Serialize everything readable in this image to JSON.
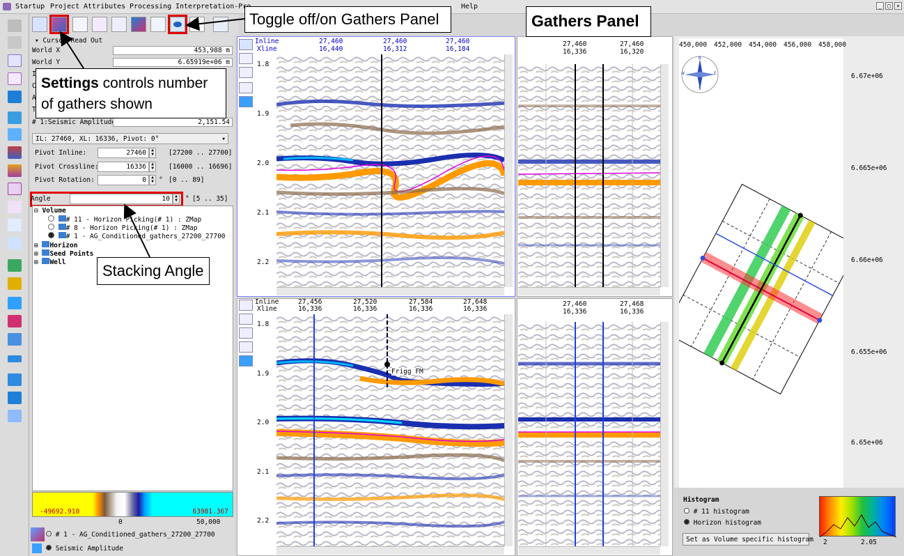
{
  "menu": [
    "Startup",
    "Project",
    "Attributes",
    "Processing",
    "Interpretation-Pro",
    "Help"
  ],
  "readout": {
    "header": "Cursor Read Out",
    "rows": [
      {
        "label": "World X",
        "value": "453,988 m"
      },
      {
        "label": "World Y",
        "value": "6.65919e+06 m"
      }
    ],
    "hidden_labels": [
      "In",
      "Cr",
      "An",
      "Ti"
    ],
    "seismic_label": "# 1:Seismic Amplitude",
    "seismic_value": "2,151.54"
  },
  "gather_select": "IL: 27460, XL: 16336, Pivot: 0°",
  "pivot": {
    "inline_label": "Pivot Inline:",
    "inline_value": "27460",
    "inline_range": "[27200 .. 27700]",
    "xline_label": "Pivot Crossline:",
    "xline_value": "16336",
    "xline_range": "[16000 .. 16696]",
    "rot_label": "Pivot Rotation:",
    "rot_value": "0",
    "rot_unit": "°",
    "rot_range": "[0 .. 89]"
  },
  "angle": {
    "label": "Angle",
    "value": "10",
    "unit": "°",
    "range": "[5 .. 35]"
  },
  "tree": {
    "volume": "Volume",
    "items": [
      "# 11 - Horizon Picking(# 1) : ZMap",
      "# 8 - Horizon Picking(# 1) : ZMap",
      "# 1 - AG_Conditioned_gathers_27200_27700"
    ],
    "horizon": "Horizon",
    "seed": "Seed Points",
    "well": "Well"
  },
  "colorbar": {
    "min": "-49692.910",
    "max": "63981.367",
    "ticks": [
      "0",
      "50,000"
    ]
  },
  "bottom": {
    "dataset": "# 1 - AG_Conditioned_gathers_27200_27700",
    "attribute": "Seismic Amplitude"
  },
  "callouts": {
    "toggle": "Toggle off/on Gathers Panel",
    "gathers": "Gathers Panel",
    "settings_bold": "Settings",
    "settings_rest1": " controls number",
    "settings_rest2": "of gathers shown",
    "stacking": "Stacking Angle"
  },
  "upper_section": {
    "inline_label": "Inline",
    "xline_label": "Xline",
    "cols": [
      {
        "il": "27,460",
        "xl": "16,440"
      },
      {
        "il": "27,460",
        "xl": "16,312"
      },
      {
        "il": "27,460",
        "xl": "16,184"
      }
    ],
    "times": [
      "1.8",
      "1.9",
      "2.0",
      "2.1",
      "2.2"
    ]
  },
  "lower_section": {
    "inline_label": "Inline",
    "xline_label": "Xline",
    "cols": [
      {
        "il": "27,456",
        "xl": "16,336"
      },
      {
        "il": "27,520",
        "xl": "16,336"
      },
      {
        "il": "27,584",
        "xl": "16,336"
      },
      {
        "il": "27,648",
        "xl": "16,336"
      }
    ],
    "times": [
      "1.8",
      "1.9",
      "2.0",
      "2.1",
      "2.2"
    ],
    "pick_label": "Frigg_FM"
  },
  "gathers_upper": {
    "cols": [
      {
        "il": "27,460",
        "xl": "16,336"
      },
      {
        "il": "27,460",
        "xl": "16,320"
      }
    ]
  },
  "gathers_lower": {
    "cols": [
      {
        "il": "27,460",
        "xl": "16,336"
      },
      {
        "il": "27,468",
        "xl": "16,336"
      }
    ]
  },
  "map": {
    "x_ticks": [
      "450,000",
      "452,000",
      "454,000",
      "456,000",
      "458,000"
    ],
    "y_ticks": [
      "6.67e+06",
      "6.665e+06",
      "6.66e+06",
      "6.655e+06",
      "6.65e+06"
    ],
    "compass": [
      "N",
      "E",
      "S",
      "W"
    ]
  },
  "histogram": {
    "title": "Histogram",
    "opt1": "# 11 histogram",
    "opt2": "Horizon histogram",
    "button": "Set as Volume specific histogram",
    "ticks": [
      "2",
      "2.05"
    ]
  }
}
